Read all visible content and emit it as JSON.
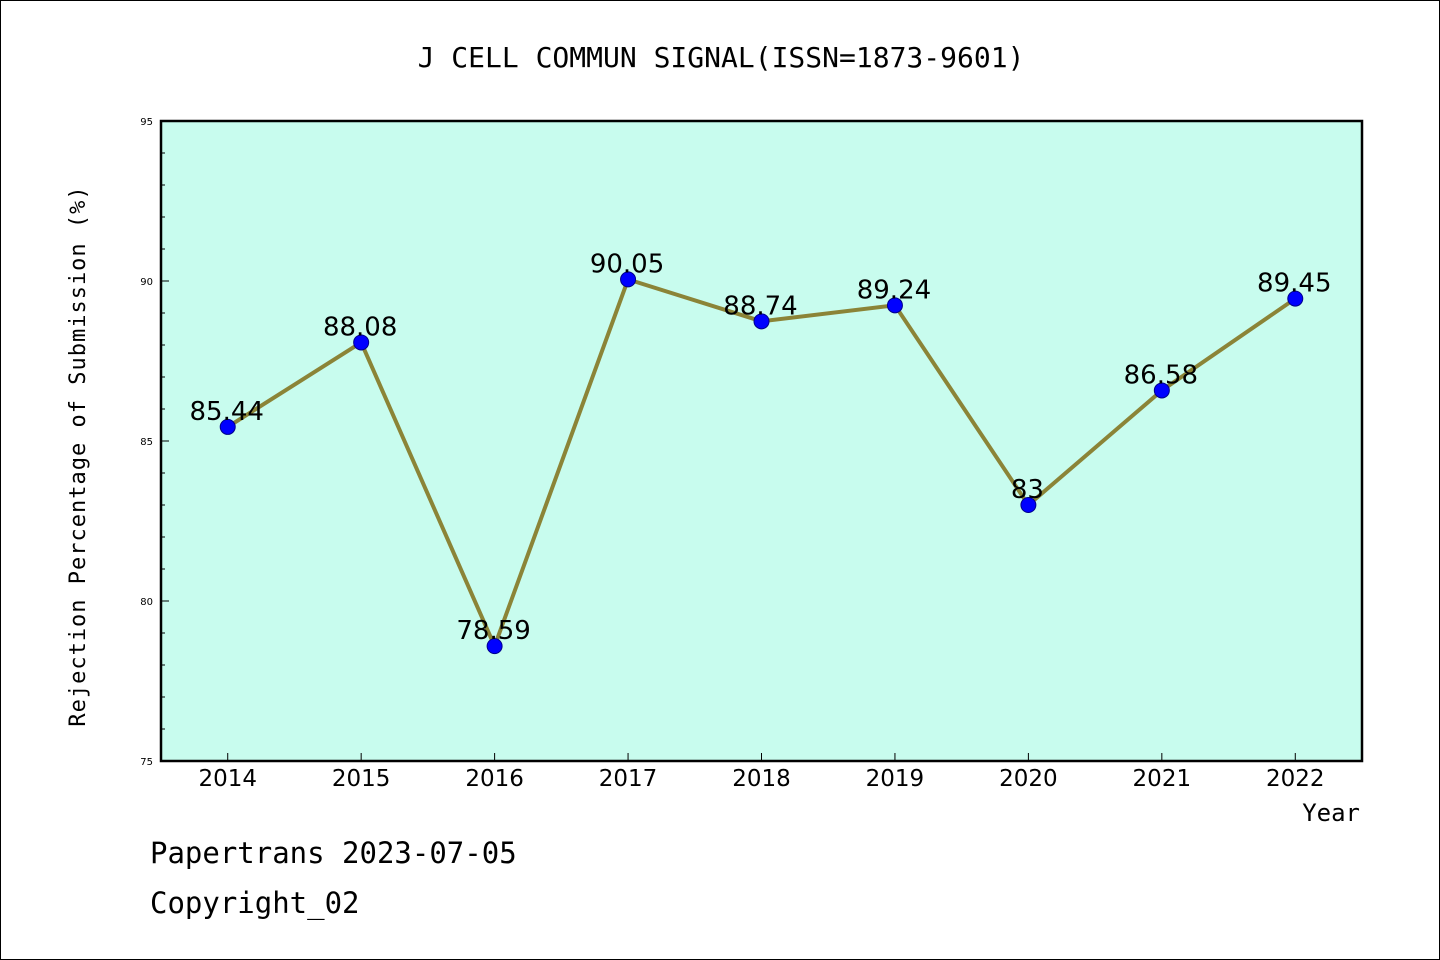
{
  "chart_data": {
    "type": "line",
    "title": "J CELL COMMUN SIGNAL(ISSN=1873-9601)",
    "xlabel": "Year",
    "ylabel": "Rejection Percentage of Submission (%)",
    "categories": [
      "2014",
      "2015",
      "2016",
      "2017",
      "2018",
      "2019",
      "2020",
      "2021",
      "2022"
    ],
    "values": [
      85.44,
      88.08,
      78.59,
      90.05,
      88.74,
      89.24,
      83,
      86.58,
      89.45
    ],
    "data_labels": [
      "85.44",
      "88.08",
      "78.59",
      "90.05",
      "88.74",
      "89.24",
      "83",
      "86.58",
      "89.45"
    ],
    "ylim": [
      75,
      95
    ],
    "yticks": [
      "75",
      "80",
      "85",
      "90",
      "95"
    ],
    "grid": false,
    "colors": {
      "plot_background": "#c8fcee",
      "line": "#8b8437",
      "marker": "#0000ff"
    }
  },
  "footer": {
    "source": "Papertrans 2023-07-05",
    "copyright": "Copyright_02"
  }
}
